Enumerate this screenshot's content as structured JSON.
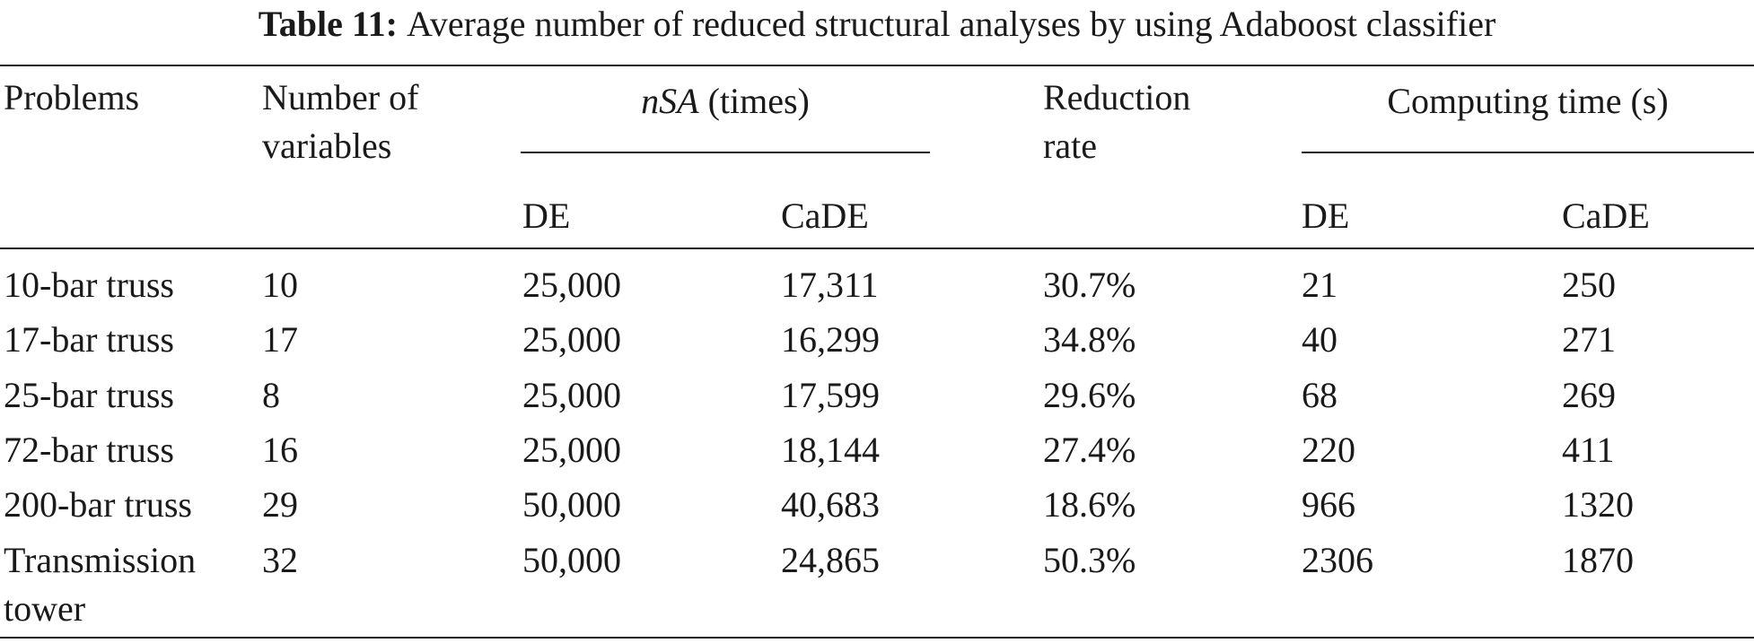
{
  "caption": {
    "label": "Table 11:",
    "text": "Average number of reduced structural analyses by using Adaboost classifier"
  },
  "headers": {
    "problems": "Problems",
    "num_vars_line1": "Number of",
    "num_vars_line2": "variables",
    "nsa_italic": "nSA",
    "nsa_unit": "(times)",
    "reduction_line1": "Reduction",
    "reduction_line2": "rate",
    "computing_time": "Computing time (s)",
    "nsa_de": "DE",
    "nsa_cade": "CaDE",
    "ct_de": "DE",
    "ct_cade": "CaDE"
  },
  "rows": [
    {
      "problem": "10-bar truss",
      "problem_line2": "",
      "num_vars": "10",
      "nsa_de": "25,000",
      "nsa_cade": "17,311",
      "reduction": "30.7%",
      "ct_de": "21",
      "ct_cade": "250"
    },
    {
      "problem": "17-bar truss",
      "problem_line2": "",
      "num_vars": "17",
      "nsa_de": "25,000",
      "nsa_cade": "16,299",
      "reduction": "34.8%",
      "ct_de": "40",
      "ct_cade": "271"
    },
    {
      "problem": "25-bar truss",
      "problem_line2": "",
      "num_vars": "8",
      "nsa_de": "25,000",
      "nsa_cade": "17,599",
      "reduction": "29.6%",
      "ct_de": "68",
      "ct_cade": "269"
    },
    {
      "problem": "72-bar truss",
      "problem_line2": "",
      "num_vars": "16",
      "nsa_de": "25,000",
      "nsa_cade": "18,144",
      "reduction": "27.4%",
      "ct_de": "220",
      "ct_cade": "411"
    },
    {
      "problem": "200-bar truss",
      "problem_line2": "",
      "num_vars": "29",
      "nsa_de": "50,000",
      "nsa_cade": "40,683",
      "reduction": "18.6%",
      "ct_de": "966",
      "ct_cade": "1320"
    },
    {
      "problem": "Transmission",
      "problem_line2": "tower",
      "num_vars": "32",
      "nsa_de": "50,000",
      "nsa_cade": "24,865",
      "reduction": "50.3%",
      "ct_de": "2306",
      "ct_cade": "1870"
    }
  ]
}
